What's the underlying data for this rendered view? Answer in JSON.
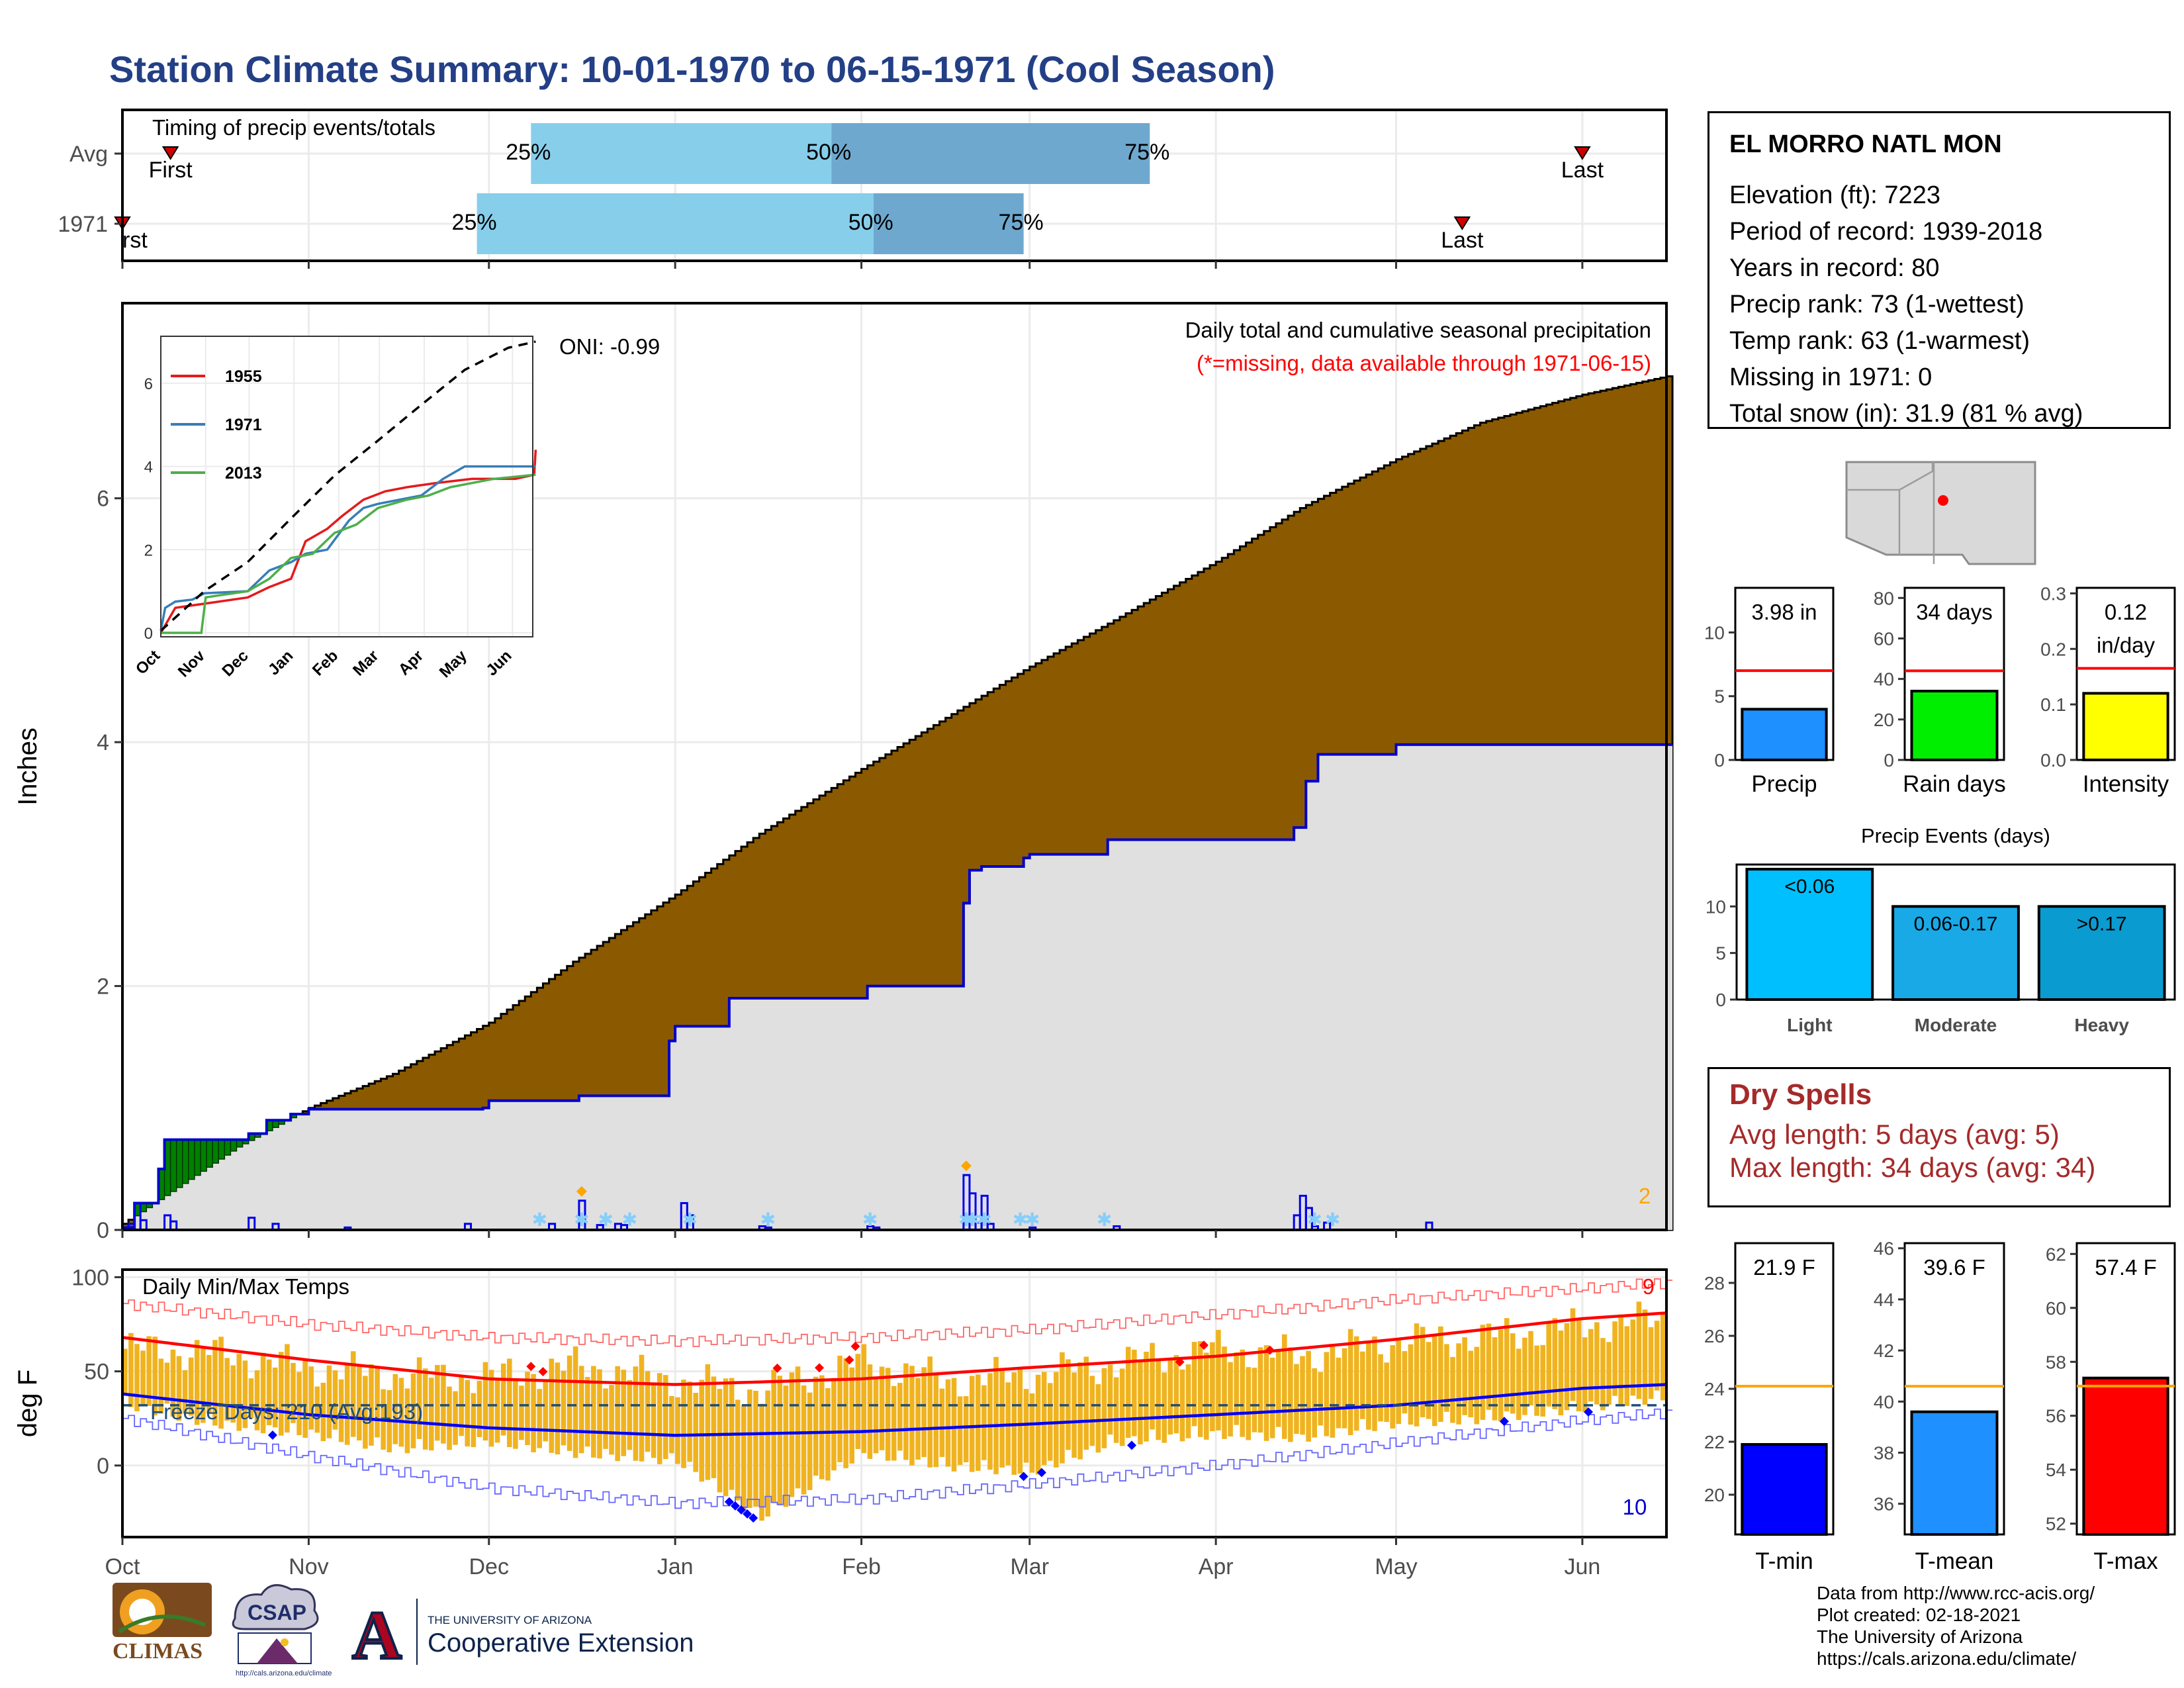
{
  "page": {
    "title": "Station Climate Summary: 10-01-1970 to 06-15-1971 (Cool Season)"
  },
  "station": {
    "name": "EL MORRO NATL MON",
    "lines": [
      "Elevation (ft): 7223",
      "Period of record: 1939-2018",
      "Years in record: 80",
      "Precip rank: 73 (1-wettest)",
      "Temp rank: 63 (1-warmest)",
      "Missing in 1971: 0",
      "Total snow (in): 31.9 (81 % avg)"
    ]
  },
  "dry_spells": {
    "title": "Dry Spells",
    "avg": "Avg length: 5 days (avg: 5)",
    "max": "Max length: 34 days (avg: 34)"
  },
  "credits": [
    "Data from http://www.rcc-acis.org/",
    "Plot created: 02-18-2021",
    "The University of Arizona",
    "https://cals.arizona.edu/climate/"
  ],
  "logos": {
    "climas": "CLIMAS",
    "csap": "CSAP",
    "csap_url": "http://cals.arizona.edu/climate",
    "ua_small": "THE UNIVERSITY OF ARIZONA",
    "ua_big": "Cooperative Extension",
    "ua_letter": "A"
  },
  "colors": {
    "title": "#233f86",
    "cum_fill": "#8B5A00",
    "obs_fill": "#e0e0e0",
    "obs_line": "#0000cc",
    "green_fill": "#008000",
    "light_blue": "#87ceeb",
    "steel_blue": "#6fa8cf",
    "tmax": "#ff0000",
    "tmin": "#0000ff",
    "range_bar": "#f0b320"
  },
  "chart_data": [
    {
      "id": "timing",
      "type": "bar",
      "title": "Timing of precip events/totals",
      "categories": [
        "Avg",
        "1971"
      ],
      "x_axis": "date, 1970-10-01 to 1971-06-15",
      "rows": [
        {
          "label": "Avg",
          "first": "1970-10-09",
          "p25": "1970-12-08",
          "p50": "1971-01-27",
          "p75": "1971-03-21",
          "last": "1971-06-01",
          "first_label": "First",
          "last_label": "Last"
        },
        {
          "label": "1971",
          "first": "1970-10-01",
          "p25": "1970-11-29",
          "p50": "1971-02-03",
          "p75": "1971-02-28",
          "last": "1971-05-12",
          "first_label": "rst",
          "last_label": "Last"
        }
      ],
      "pct_labels": [
        "25%",
        "50%",
        "75%"
      ]
    },
    {
      "id": "precip-main",
      "type": "area",
      "title": "Daily total and cumulative seasonal precipitation",
      "subtitle": "(*=missing, data available through 1971-06-15)",
      "annotation": "ONI: -0.99",
      "corner_label": "2",
      "ylabel": "Inches",
      "ylim": [
        0,
        7.6
      ],
      "yticks": [
        0,
        2,
        4,
        6
      ],
      "xlabels": [
        "Oct",
        "Nov",
        "Dec",
        "Jan",
        "Feb",
        "Mar",
        "Apr",
        "May",
        "Jun"
      ],
      "avg_cumulative": {
        "x": [
          "1970-10-01",
          "1970-10-20",
          "1970-11-01",
          "1970-11-15",
          "1970-12-01",
          "1970-12-15",
          "1971-01-01",
          "1971-01-15",
          "1971-02-01",
          "1971-02-15",
          "1971-03-01",
          "1971-03-15",
          "1971-04-01",
          "1971-04-15",
          "1971-05-01",
          "1971-05-15",
          "1971-06-01",
          "1971-06-15"
        ],
        "y": [
          0.05,
          0.68,
          1.0,
          1.28,
          1.7,
          2.2,
          2.75,
          3.25,
          3.78,
          4.2,
          4.62,
          5.0,
          5.48,
          5.92,
          6.32,
          6.62,
          6.85,
          7.0
        ]
      },
      "observed_cumulative": {
        "x": [
          "1970-10-01",
          "1970-10-03",
          "1970-10-07",
          "1970-10-08",
          "1970-10-22",
          "1970-10-25",
          "1970-10-29",
          "1970-11-01",
          "1970-11-30",
          "1970-12-01",
          "1970-12-16",
          "1970-12-31",
          "1971-01-01",
          "1971-01-10",
          "1971-02-02",
          "1971-02-18",
          "1971-02-19",
          "1971-02-21",
          "1971-02-28",
          "1971-03-01",
          "1971-03-14",
          "1971-04-14",
          "1971-04-16",
          "1971-04-18",
          "1971-05-01",
          "1971-06-15"
        ],
        "y": [
          0.02,
          0.22,
          0.5,
          0.74,
          0.79,
          0.9,
          0.95,
          0.99,
          1.0,
          1.06,
          1.1,
          1.55,
          1.67,
          1.9,
          2.0,
          2.68,
          2.95,
          2.98,
          3.05,
          3.08,
          3.2,
          3.3,
          3.68,
          3.9,
          3.98,
          3.98
        ]
      },
      "daily": {
        "x": [
          "1970-10-02",
          "1970-10-03",
          "1970-10-04",
          "1970-10-08",
          "1970-10-09",
          "1970-10-22",
          "1970-10-26",
          "1970-11-07",
          "1970-11-27",
          "1970-12-11",
          "1970-12-16",
          "1970-12-19",
          "1970-12-22",
          "1970-12-23",
          "1971-01-02",
          "1971-01-03",
          "1971-01-15",
          "1971-01-16",
          "1971-02-02",
          "1971-02-03",
          "1971-02-18",
          "1971-02-19",
          "1971-02-20",
          "1971-02-21",
          "1971-02-22",
          "1971-03-01",
          "1971-03-15",
          "1971-04-14",
          "1971-04-15",
          "1971-04-16",
          "1971-04-17",
          "1971-04-19",
          "1971-05-06"
        ],
        "y": [
          0.05,
          0.22,
          0.08,
          0.12,
          0.07,
          0.1,
          0.05,
          0.02,
          0.05,
          0.05,
          0.24,
          0.04,
          0.05,
          0.04,
          0.22,
          0.12,
          0.03,
          0.02,
          0.03,
          0.02,
          0.45,
          0.3,
          0.06,
          0.28,
          0.05,
          0.02,
          0.03,
          0.12,
          0.28,
          0.18,
          0.03,
          0.06,
          0.06
        ]
      },
      "snow_marker_dates": [
        "1970-12-09",
        "1970-12-16",
        "1970-12-20",
        "1970-12-24",
        "1971-01-03",
        "1971-01-16",
        "1971-02-02",
        "1971-02-18",
        "1971-02-19",
        "1971-02-21",
        "1971-02-27",
        "1971-03-01",
        "1971-03-13",
        "1971-04-17",
        "1971-04-20"
      ],
      "orange_marker_dates": [
        "1970-12-16",
        "1971-02-18"
      ]
    },
    {
      "id": "inset",
      "type": "line",
      "ylim": [
        0,
        7
      ],
      "yticks": [
        0,
        2,
        4,
        6
      ],
      "xlabels": [
        "Oct",
        "Nov",
        "Dec",
        "Jan",
        "Feb",
        "Mar",
        "Apr",
        "May",
        "Jun"
      ],
      "series": [
        {
          "name": "1955",
          "color": "#e41a1c",
          "x": [
            0,
            10,
            30,
            60,
            75,
            90,
            100,
            115,
            125,
            140,
            155,
            170,
            190,
            215,
            245,
            258,
            259
          ],
          "y": [
            0,
            0.6,
            0.7,
            0.85,
            1.1,
            1.3,
            2.2,
            2.5,
            2.8,
            3.2,
            3.4,
            3.5,
            3.6,
            3.7,
            3.7,
            3.8,
            4.4
          ]
        },
        {
          "name": "1971",
          "color": "#377eb8",
          "x": [
            0,
            3,
            10,
            22,
            30,
            60,
            75,
            90,
            100,
            115,
            130,
            140,
            150,
            165,
            180,
            195,
            205,
            210,
            230,
            259
          ],
          "y": [
            0.05,
            0.6,
            0.75,
            0.8,
            0.95,
            1.0,
            1.5,
            1.7,
            1.9,
            2.0,
            2.7,
            3.0,
            3.1,
            3.2,
            3.3,
            3.7,
            3.9,
            4.0,
            4.0,
            4.0
          ]
        },
        {
          "name": "2013",
          "color": "#4daf4a",
          "x": [
            0,
            10,
            28,
            31,
            40,
            60,
            75,
            90,
            105,
            120,
            135,
            150,
            170,
            185,
            200,
            215,
            230,
            259
          ],
          "y": [
            0,
            0,
            0,
            0.85,
            0.9,
            1.0,
            1.3,
            1.8,
            1.9,
            2.4,
            2.6,
            3.0,
            3.2,
            3.3,
            3.5,
            3.6,
            3.7,
            3.8
          ]
        }
      ],
      "avg": {
        "x": [
          0,
          30,
          60,
          90,
          120,
          150,
          180,
          210,
          240,
          259
        ],
        "y": [
          0.05,
          1.0,
          1.7,
          2.75,
          3.78,
          4.62,
          5.48,
          6.32,
          6.85,
          7.0
        ]
      }
    },
    {
      "id": "precip-total",
      "type": "bar",
      "value_label": "3.98 in",
      "category": "Precip",
      "value": 3.98,
      "avg": 7.0,
      "ylim": [
        0,
        13.5
      ],
      "yticks": [
        0,
        5,
        10
      ]
    },
    {
      "id": "rain-days",
      "type": "bar",
      "value_label": "34 days",
      "category": "Rain days",
      "value": 34,
      "avg": 44,
      "ylim": [
        0,
        85
      ],
      "yticks": [
        0,
        20,
        40,
        60,
        80
      ]
    },
    {
      "id": "intensity",
      "type": "bar",
      "value_label": "0.12",
      "value_label2": "in/day",
      "category": "Intensity",
      "value": 0.12,
      "avg": 0.165,
      "ylim": [
        0,
        0.31
      ],
      "yticks": [
        "0.0",
        "0.1",
        "0.2",
        "0.3"
      ]
    },
    {
      "id": "precip-events",
      "type": "bar",
      "title": "Precip Events (days)",
      "categories": [
        "Light",
        "Moderate",
        "Heavy"
      ],
      "values": [
        14,
        10,
        10
      ],
      "labels": [
        "<0.06",
        "0.06-0.17",
        ">0.17"
      ],
      "colors": [
        "#00bfff",
        "#19a9e6",
        "#0a9bd0"
      ],
      "ylim": [
        0,
        14.5
      ],
      "yticks": [
        0,
        5,
        10
      ]
    },
    {
      "id": "temps",
      "type": "bar",
      "title": "Daily Min/Max Temps",
      "ylabel": "deg F",
      "ylim": [
        -38,
        104
      ],
      "yticks": [
        0,
        50,
        100
      ],
      "xlabels": [
        "Oct",
        "Nov",
        "Dec",
        "Jan",
        "Feb",
        "Mar",
        "Apr",
        "May",
        "Jun"
      ],
      "freeze_label": "Freeze Days: 210 (Avg:193)",
      "freeze_line": 32,
      "corner_top": "9",
      "corner_bottom": "10",
      "avg_max": {
        "x": [
          "1970-10-01",
          "1970-11-01",
          "1970-12-01",
          "1971-01-01",
          "1971-02-01",
          "1971-03-01",
          "1971-04-01",
          "1971-05-01",
          "1971-06-01",
          "1971-06-15"
        ],
        "y": [
          68,
          56,
          46,
          43,
          46,
          52,
          58,
          67,
          78,
          81
        ]
      },
      "avg_min": {
        "x": [
          "1970-10-01",
          "1970-11-01",
          "1970-12-01",
          "1971-01-01",
          "1971-02-01",
          "1971-03-01",
          "1971-04-01",
          "1971-05-01",
          "1971-06-01",
          "1971-06-15"
        ],
        "y": [
          38,
          27,
          20,
          16,
          18,
          22,
          27,
          32,
          41,
          43
        ]
      },
      "record_max": {
        "x": [
          "1970-10-01",
          "1970-11-01",
          "1970-12-01",
          "1971-01-01",
          "1971-02-01",
          "1971-03-01",
          "1971-04-01",
          "1971-05-01",
          "1971-06-01",
          "1971-06-15"
        ],
        "y": [
          86,
          75,
          68,
          66,
          68,
          72,
          80,
          88,
          94,
          97
        ]
      },
      "record_min": {
        "x": [
          "1970-10-01",
          "1970-11-01",
          "1970-12-01",
          "1971-01-01",
          "1971-02-01",
          "1971-03-01",
          "1971-04-01",
          "1971-05-01",
          "1971-06-01",
          "1971-06-15"
        ],
        "y": [
          25,
          5,
          -12,
          -20,
          -18,
          -10,
          0,
          12,
          24,
          28
        ]
      },
      "daily_high": {
        "x": [
          "1970-10-01",
          "1970-10-15",
          "1970-11-01",
          "1970-11-15",
          "1970-12-01",
          "1970-12-15",
          "1971-01-01",
          "1971-01-15",
          "1971-02-01",
          "1971-02-15",
          "1971-03-01",
          "1971-03-15",
          "1971-04-01",
          "1971-04-15",
          "1971-05-01",
          "1971-05-15",
          "1971-06-01",
          "1971-06-15"
        ],
        "y": [
          62,
          60,
          52,
          48,
          47,
          53,
          45,
          40,
          55,
          45,
          48,
          54,
          62,
          58,
          66,
          68,
          74,
          78
        ]
      },
      "daily_low": {
        "x": [
          "1970-10-01",
          "1970-10-15",
          "1970-11-01",
          "1970-11-15",
          "1970-12-01",
          "1970-12-15",
          "1971-01-01",
          "1971-01-15",
          "1971-02-01",
          "1971-02-15",
          "1971-03-01",
          "1971-03-15",
          "1971-04-01",
          "1971-04-15",
          "1971-05-01",
          "1971-05-15",
          "1971-06-01",
          "1971-06-15"
        ],
        "y": [
          38,
          28,
          22,
          14,
          18,
          12,
          8,
          -22,
          12,
          5,
          2,
          18,
          22,
          20,
          28,
          30,
          36,
          42
        ]
      },
      "record_high_marks": [
        "1970-12-08",
        "1970-12-10",
        "1971-01-18",
        "1971-01-25",
        "1971-01-30",
        "1971-01-31",
        "1971-03-26",
        "1971-03-30",
        "1971-04-10"
      ],
      "record_low_marks": [
        "1970-10-26",
        "1971-01-10",
        "1971-01-11",
        "1971-01-12",
        "1971-01-13",
        "1971-01-14",
        "1971-02-28",
        "1971-03-03",
        "1971-03-18",
        "1971-05-19",
        "1971-06-02"
      ]
    },
    {
      "id": "tmin",
      "type": "bar",
      "value_label": "21.9 F",
      "category": "T-min",
      "value": 21.9,
      "avg": 24.1,
      "ylim": [
        18.5,
        29.5
      ],
      "yticks": [
        20,
        22,
        24,
        26,
        28
      ]
    },
    {
      "id": "tmean",
      "type": "bar",
      "value_label": "39.6 F",
      "category": "T-mean",
      "value": 39.6,
      "avg": 40.6,
      "ylim": [
        34.8,
        46.2
      ],
      "yticks": [
        36,
        38,
        40,
        42,
        44,
        46
      ]
    },
    {
      "id": "tmax",
      "type": "bar",
      "value_label": "57.4 F",
      "category": "T-max",
      "value": 57.4,
      "avg": 57.1,
      "ylim": [
        51.6,
        62.4
      ],
      "yticks": [
        52,
        54,
        56,
        58,
        60,
        62
      ]
    }
  ]
}
